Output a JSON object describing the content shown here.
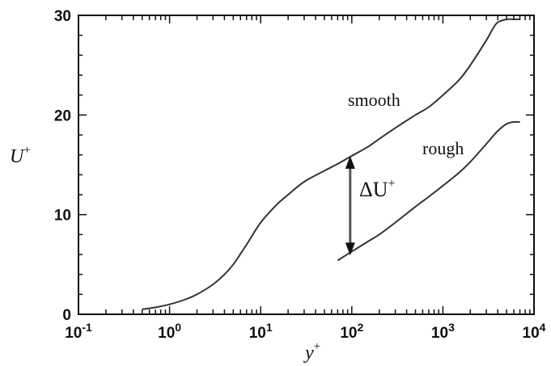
{
  "chart_data": {
    "type": "line",
    "title": "",
    "xlabel": "y",
    "xlabel_sup": "+",
    "ylabel": "U",
    "ylabel_sup": "+",
    "xscale": "log",
    "xlim": [
      0.1,
      10000
    ],
    "ylim": [
      0,
      30
    ],
    "grid": false,
    "x_ticks": [
      {
        "base": "10",
        "exp": "-1"
      },
      {
        "base": "10",
        "exp": "0"
      },
      {
        "base": "10",
        "exp": "1"
      },
      {
        "base": "10",
        "exp": "2"
      },
      {
        "base": "10",
        "exp": "3"
      },
      {
        "base": "10",
        "exp": "4"
      }
    ],
    "y_ticks": [
      "0",
      "10",
      "20",
      "30"
    ],
    "series": [
      {
        "name": "smooth",
        "x": [
          0.5,
          0.7,
          1,
          1.5,
          2,
          3,
          4,
          5,
          7,
          10,
          15,
          20,
          30,
          50,
          70,
          100,
          150,
          200,
          300,
          500,
          700,
          1000,
          1500,
          2000,
          3000,
          3500,
          4000,
          5000,
          6000,
          7000
        ],
        "y": [
          0.5,
          0.7,
          1.0,
          1.5,
          2.0,
          3.0,
          4.0,
          5.0,
          7.0,
          9.2,
          11.0,
          12.0,
          13.3,
          14.4,
          15.1,
          15.9,
          16.8,
          17.6,
          18.7,
          20.0,
          20.8,
          22.0,
          23.5,
          25.0,
          27.5,
          28.6,
          29.3,
          29.6,
          29.6,
          29.6
        ]
      },
      {
        "name": "rough",
        "x": [
          70,
          100,
          150,
          200,
          300,
          500,
          700,
          1000,
          1500,
          2000,
          3000,
          4000,
          5000,
          6000,
          7000
        ],
        "y": [
          5.4,
          6.3,
          7.3,
          8.0,
          9.2,
          10.8,
          11.8,
          12.9,
          14.2,
          15.3,
          17.1,
          18.4,
          19.1,
          19.3,
          19.3
        ]
      }
    ],
    "annotations": [
      {
        "text": "ΔU",
        "sup": "+",
        "x": 100,
        "y_from": 5.9,
        "y_to": 15.9
      }
    ]
  }
}
